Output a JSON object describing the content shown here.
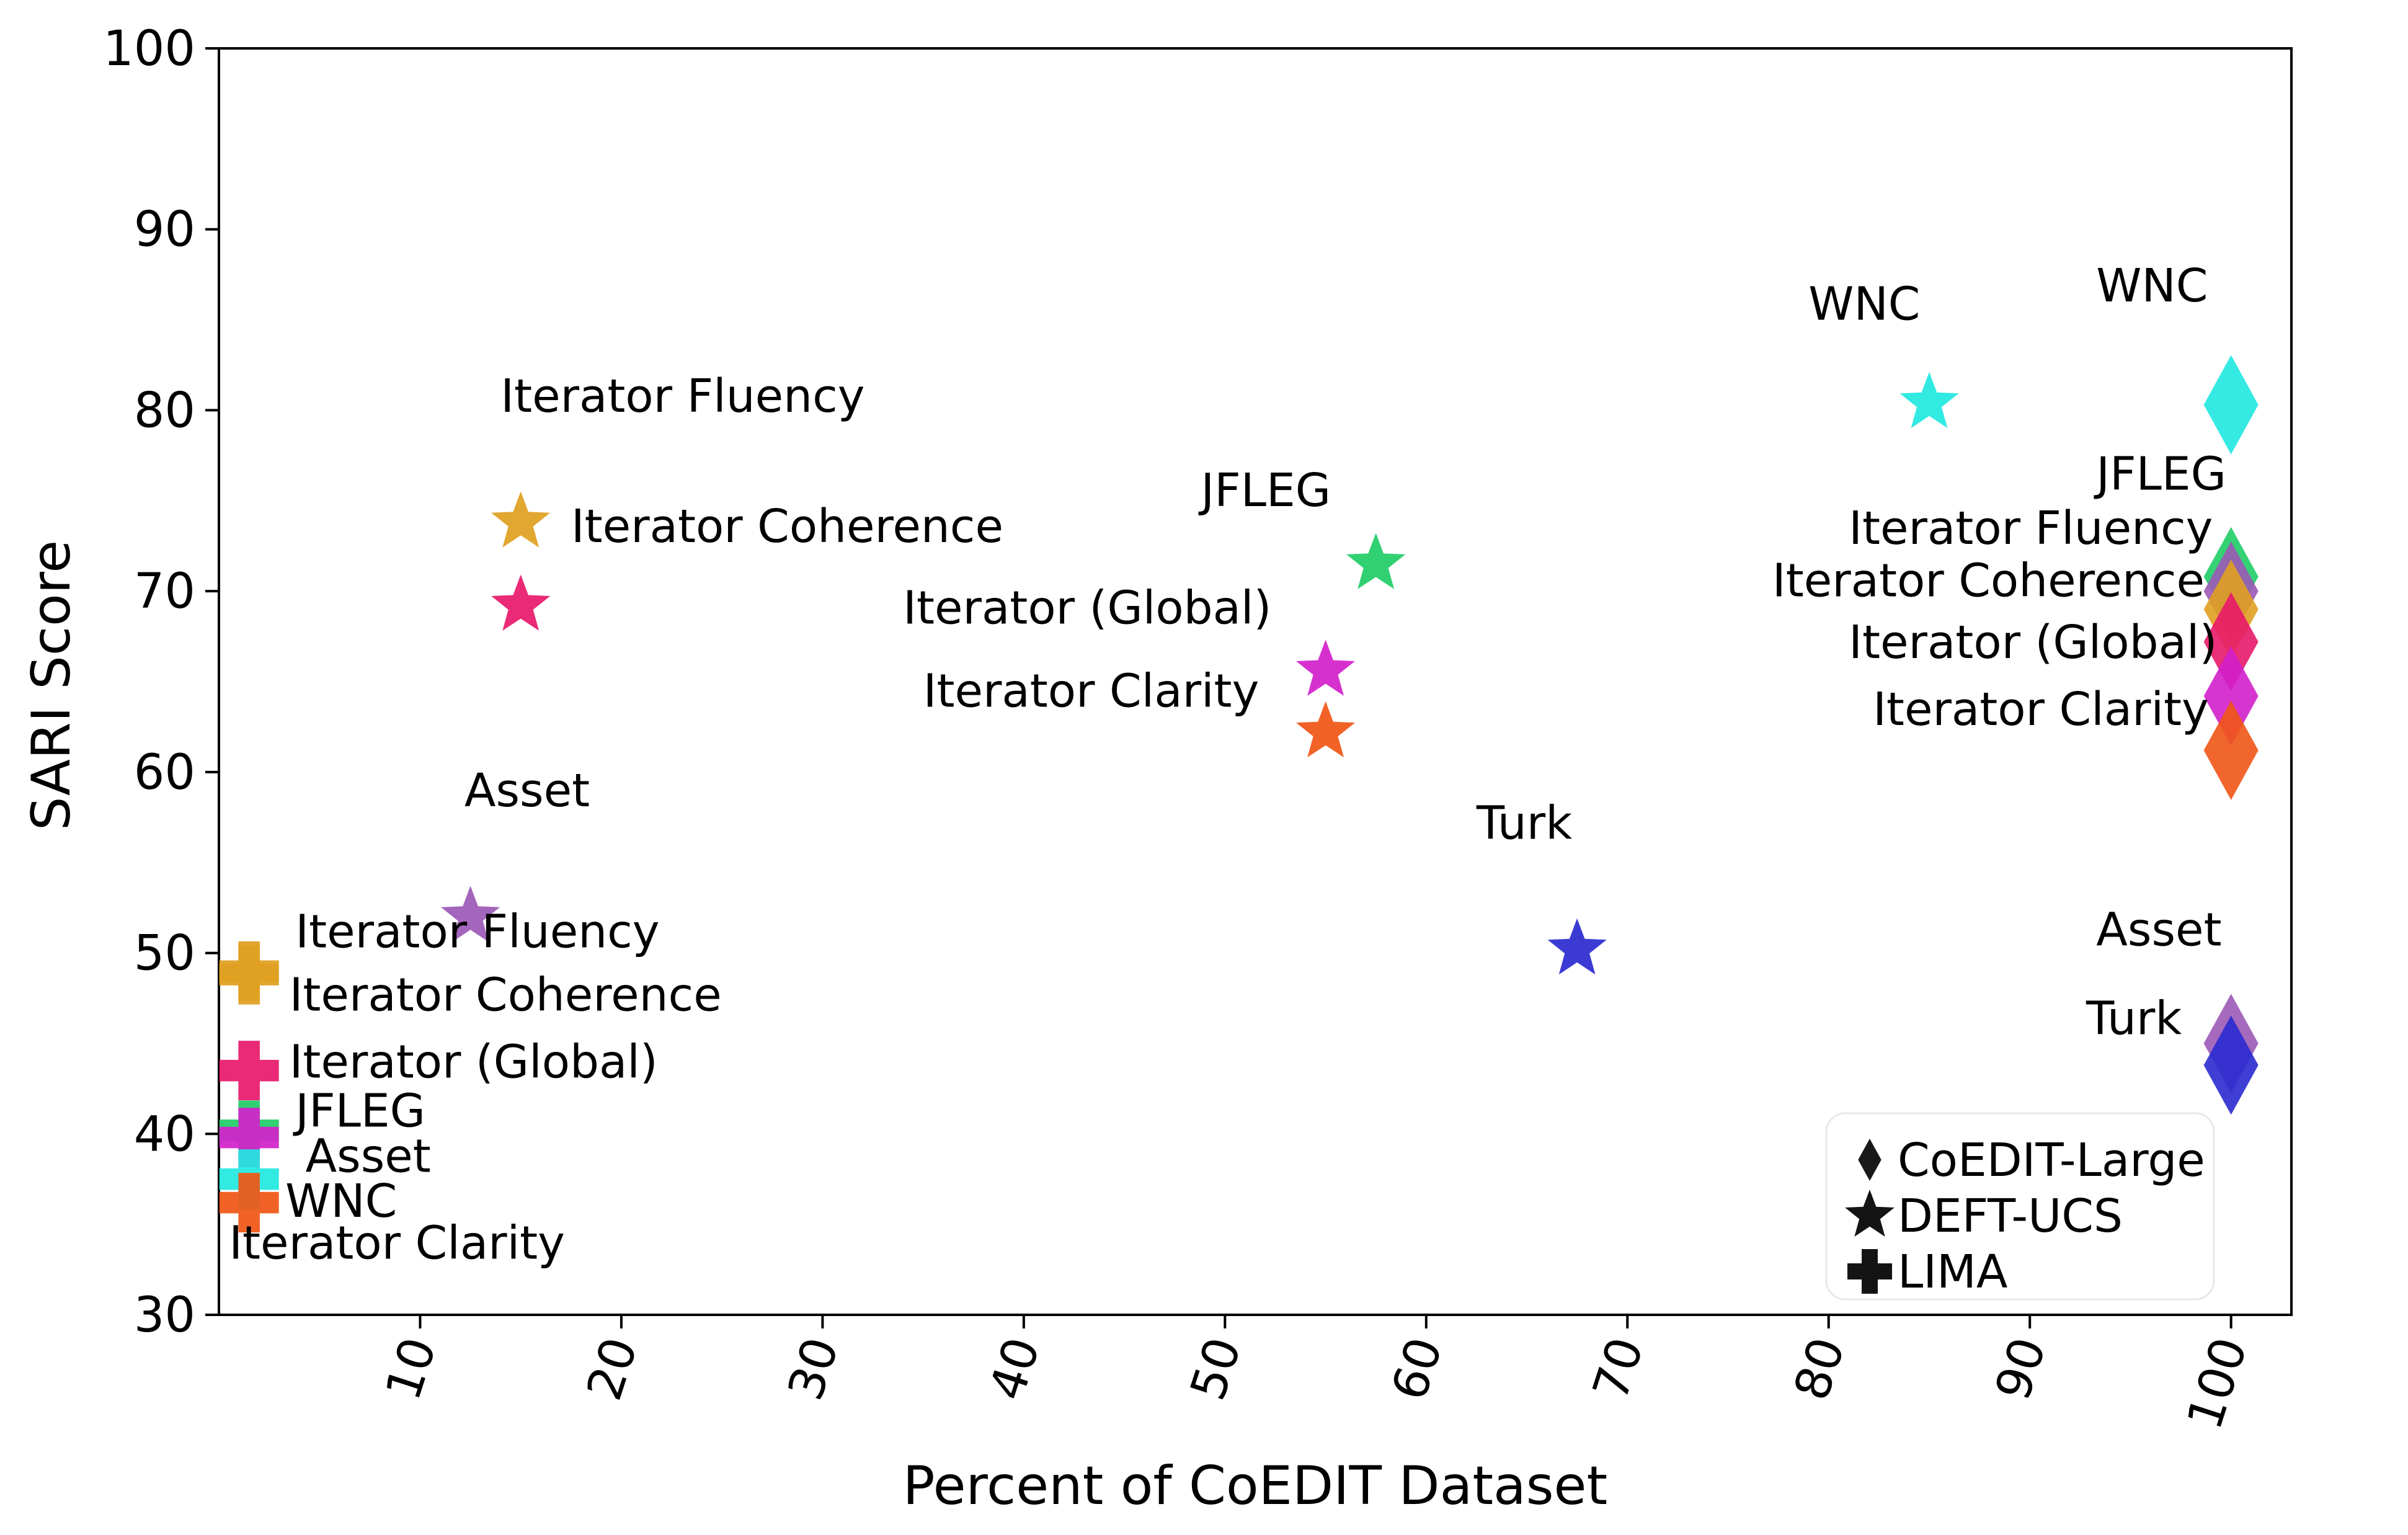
{
  "chart_data": {
    "type": "scatter",
    "title": "",
    "xlabel": "Percent of CoEDIT Dataset",
    "ylabel": "SARI Score",
    "xlim": [
      0,
      103
    ],
    "ylim": [
      30,
      100
    ],
    "xticks": [
      10,
      20,
      30,
      40,
      50,
      60,
      70,
      80,
      90,
      100
    ],
    "yticks": [
      30,
      40,
      50,
      60,
      70,
      80,
      90,
      100
    ],
    "grid": false,
    "legend_position": "bottom-right",
    "legend": [
      {
        "marker": "diamond",
        "label": "CoEDIT-Large"
      },
      {
        "marker": "star",
        "label": "DEFT-UCS"
      },
      {
        "marker": "plus",
        "label": "LIMA"
      }
    ],
    "colors": {
      "Iterator Fluency": "#9b59b6",
      "Iterator Coherence": "#e0a020",
      "Iterator (Global)": "#e8186a",
      "Iterator Clarity": "#f05515",
      "JFLEG": "#1fcc66",
      "Asset": "#9b59b6",
      "Turk": "#2a2ad0",
      "WNC": "#1fe8e0",
      "Iterator Clarity (DEFT)": "#d21fcb"
    },
    "series": [
      {
        "name": "CoEDIT-Large",
        "marker": "diamond",
        "points": [
          {
            "label": "WNC",
            "x": 100,
            "y": 80.3,
            "color": "#1fe8e0"
          },
          {
            "label": "JFLEG",
            "x": 100,
            "y": 70.8,
            "color": "#1fcc66"
          },
          {
            "label": "Iterator Fluency",
            "x": 100,
            "y": 70.0,
            "color": "#9b59b6"
          },
          {
            "label": "Iterator Coherence",
            "x": 100,
            "y": 69.0,
            "color": "#e0a020"
          },
          {
            "label": "Iterator (Global)",
            "x": 100,
            "y": 67.2,
            "color": "#e8186a"
          },
          {
            "label": "Iterator Clarity",
            "x": 100,
            "y": 64.2,
            "color": "#d21fcb"
          },
          {
            "label": "Iterator Clarity",
            "x": 100,
            "y": 61.2,
            "color": "#f05515"
          },
          {
            "label": "Asset",
            "x": 100,
            "y": 45.0,
            "color": "#9b59b6"
          },
          {
            "label": "Turk",
            "x": 100,
            "y": 43.8,
            "color": "#2a2ad0"
          }
        ]
      },
      {
        "name": "DEFT-UCS",
        "marker": "star",
        "points": [
          {
            "label": "Iterator Fluency",
            "x": 15,
            "y": 73.8,
            "color": "#e0a020"
          },
          {
            "label": "Iterator Coherence",
            "x": 15,
            "y": 69.2,
            "color": "#e8186a"
          },
          {
            "label": "Asset",
            "x": 12.5,
            "y": 52.0,
            "color": "#9b59b6"
          },
          {
            "label": "JFLEG",
            "x": 57.5,
            "y": 71.5,
            "color": "#1fcc66"
          },
          {
            "label": "Iterator (Global)",
            "x": 55,
            "y": 65.6,
            "color": "#d21fcb"
          },
          {
            "label": "Iterator Clarity",
            "x": 55,
            "y": 62.2,
            "color": "#f05515"
          },
          {
            "label": "Turk",
            "x": 67.5,
            "y": 50.2,
            "color": "#2a2ad0"
          },
          {
            "label": "WNC",
            "x": 85,
            "y": 80.4,
            "color": "#1fe8e0"
          }
        ]
      },
      {
        "name": "LIMA",
        "marker": "plus",
        "points": [
          {
            "label": "Iterator Fluency",
            "x": 1.5,
            "y": 49.0,
            "color": "#e0a020"
          },
          {
            "label": "Iterator Coherence",
            "x": 1.5,
            "y": 48.8,
            "color": "#e0a020"
          },
          {
            "label": "Iterator (Global)",
            "x": 1.5,
            "y": 43.5,
            "color": "#e8186a"
          },
          {
            "label": "JFLEG",
            "x": 1.5,
            "y": 40.2,
            "color": "#1fcc66"
          },
          {
            "label": "Asset",
            "x": 1.5,
            "y": 39.8,
            "color": "#d21fcb"
          },
          {
            "label": "WNC",
            "x": 1.5,
            "y": 37.5,
            "color": "#1fe8e0"
          },
          {
            "label": "Iterator Clarity",
            "x": 1.5,
            "y": 36.2,
            "color": "#f05515"
          }
        ]
      }
    ],
    "annotations": [
      {
        "text": "Iterator Fluency",
        "x": 14,
        "y": 80.8,
        "anchor": "start"
      },
      {
        "text": "Iterator Coherence",
        "x": 17.5,
        "y": 73.6,
        "anchor": "start"
      },
      {
        "text": "Asset",
        "x": 12.2,
        "y": 59.0,
        "anchor": "start"
      },
      {
        "text": "JFLEG",
        "x": 48.8,
        "y": 75.6,
        "anchor": "start"
      },
      {
        "text": "Iterator (Global)",
        "x": 34,
        "y": 69.1,
        "anchor": "start"
      },
      {
        "text": "Iterator Clarity",
        "x": 35,
        "y": 64.5,
        "anchor": "start"
      },
      {
        "text": "Turk",
        "x": 62.5,
        "y": 57.2,
        "anchor": "start"
      },
      {
        "text": "WNC",
        "x": 79,
        "y": 85.9,
        "anchor": "start"
      },
      {
        "text": "WNC",
        "x": 93.3,
        "y": 86.9,
        "anchor": "start"
      },
      {
        "text": "JFLEG",
        "x": 93.3,
        "y": 76.5,
        "anchor": "start"
      },
      {
        "text": "Iterator Fluency",
        "x": 81,
        "y": 73.5,
        "anchor": "start"
      },
      {
        "text": "Iterator Coherence",
        "x": 77.2,
        "y": 70.6,
        "anchor": "start"
      },
      {
        "text": "Iterator (Global)",
        "x": 81,
        "y": 67.2,
        "anchor": "start"
      },
      {
        "text": "Iterator Clarity",
        "x": 82.2,
        "y": 63.5,
        "anchor": "start"
      },
      {
        "text": "Asset",
        "x": 93.3,
        "y": 51.3,
        "anchor": "start"
      },
      {
        "text": "Turk",
        "x": 92.8,
        "y": 46.4,
        "anchor": "start"
      },
      {
        "text": "Iterator Fluency",
        "x": 3.8,
        "y": 51.2,
        "anchor": "start"
      },
      {
        "text": "Iterator Coherence",
        "x": 3.5,
        "y": 47.7,
        "anchor": "start"
      },
      {
        "text": "Iterator (Global)",
        "x": 3.5,
        "y": 44.0,
        "anchor": "start"
      },
      {
        "text": "JFLEG",
        "x": 3.8,
        "y": 41.3,
        "anchor": "start"
      },
      {
        "text": "Asset",
        "x": 4.3,
        "y": 38.8,
        "anchor": "start"
      },
      {
        "text": "WNC",
        "x": 3.3,
        "y": 36.3,
        "anchor": "start"
      },
      {
        "text": "Iterator Clarity",
        "x": 0.5,
        "y": 34.0,
        "anchor": "start"
      }
    ]
  }
}
